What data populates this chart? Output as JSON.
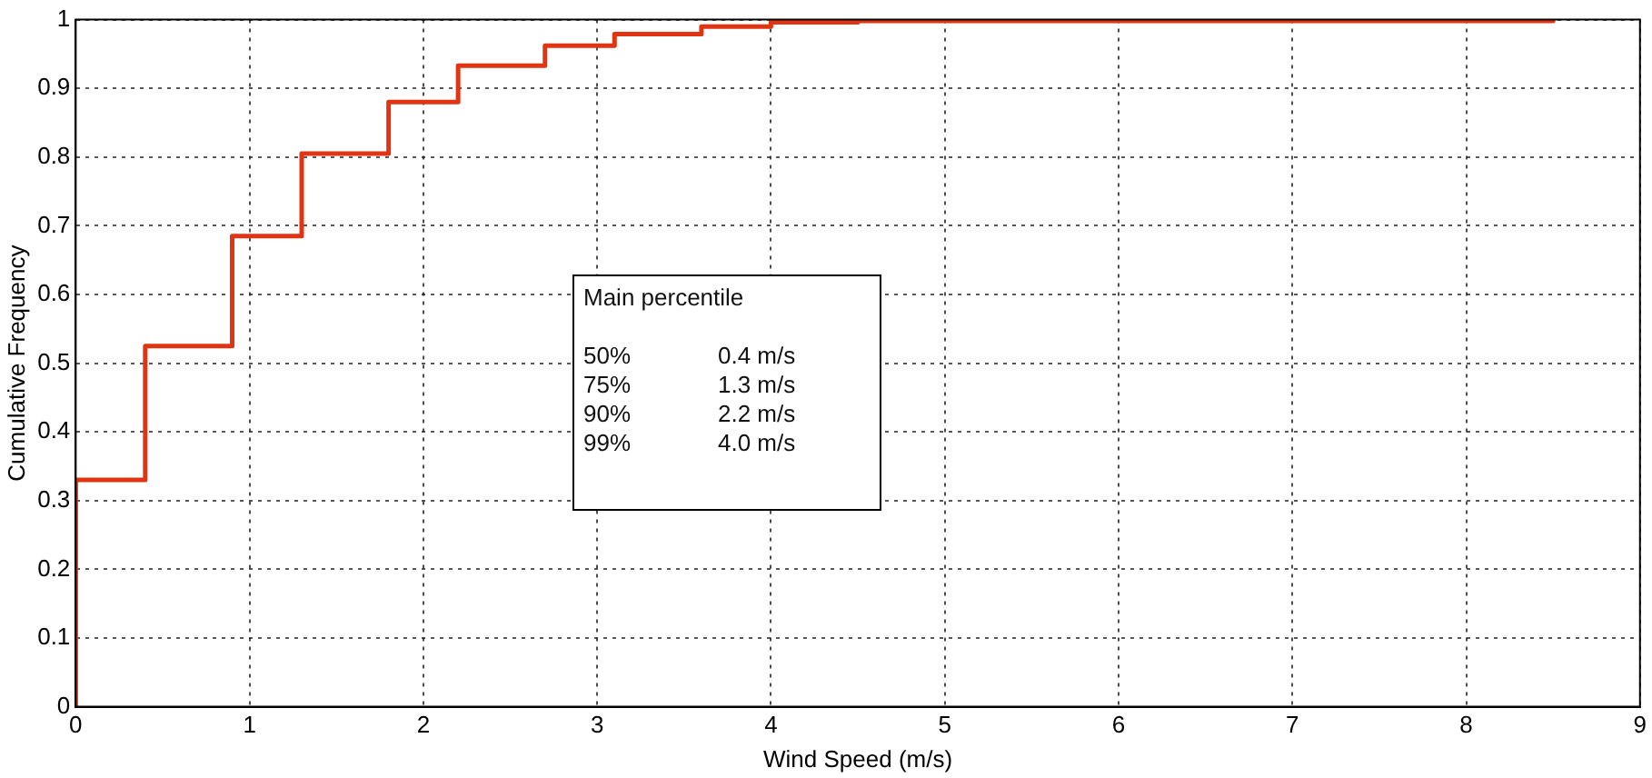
{
  "chart_data": {
    "type": "step",
    "xlabel": "Wind Speed (m/s)",
    "ylabel": "Cumulative Frequency",
    "x": [
      0,
      0,
      0.4,
      0.9,
      1.3,
      1.8,
      2.2,
      2.7,
      3.1,
      3.6,
      4.0,
      4.5,
      8.5
    ],
    "series": [
      {
        "color": "#e03412",
        "values": [
          0,
          0.33,
          0.525,
          0.685,
          0.805,
          0.88,
          0.933,
          0.962,
          0.979,
          0.99,
          0.996,
          0.998,
          1
        ]
      }
    ],
    "xlim": [
      0,
      9
    ],
    "xticks": [
      0,
      1,
      2,
      3,
      4,
      5,
      6,
      7,
      8,
      9
    ],
    "ylim": [
      0,
      1
    ],
    "yticks": [
      0,
      0.1,
      0.2,
      0.3,
      0.4,
      0.5,
      0.6,
      0.7,
      0.8,
      0.9,
      1
    ],
    "grid": true,
    "legend": false,
    "marker": "none",
    "line_style": "solid",
    "annotations": [
      "Main percentile",
      "50%",
      "0.4 m/s",
      "75%",
      "1.3 m/s",
      "90%",
      "2.2 m/s",
      "99%",
      "4.0 m/s"
    ]
  }
}
